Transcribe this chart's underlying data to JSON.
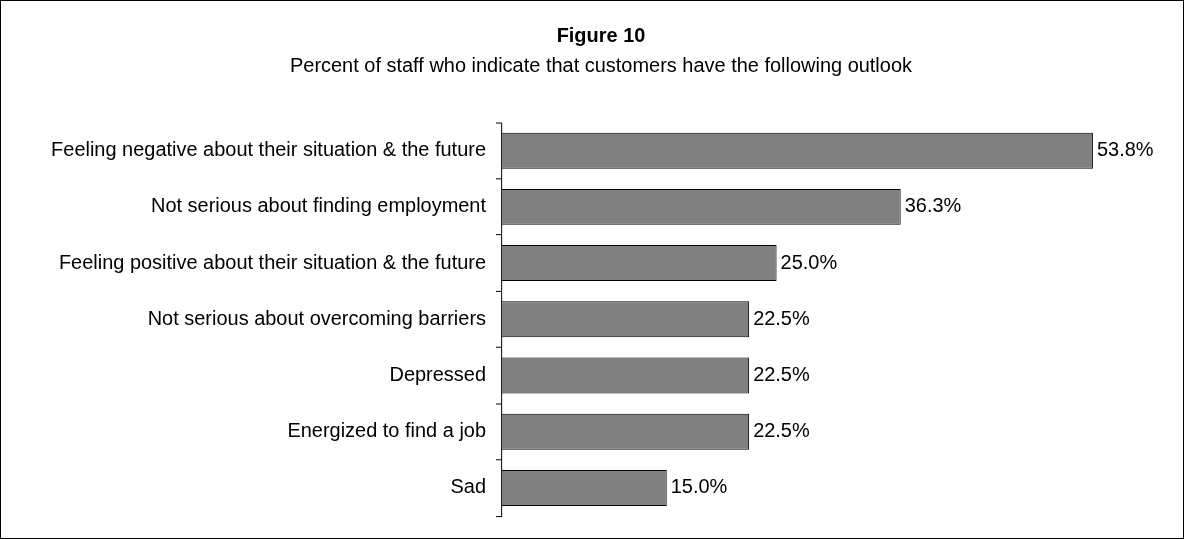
{
  "chart_data": {
    "type": "bar",
    "orientation": "horizontal",
    "title": "Figure 10",
    "subtitle": "Percent of staff who indicate that customers have the following outlook",
    "categories": [
      "Feeling negative about their situation & the future",
      "Not serious about finding employment",
      "Feeling positive about their situation & the future",
      "Not serious about overcoming barriers",
      "Depressed",
      "Energized to find a job",
      "Sad"
    ],
    "values": [
      53.8,
      36.3,
      25.0,
      22.5,
      22.5,
      22.5,
      15.0
    ],
    "value_labels": [
      "53.8%",
      "36.3%",
      "25.0%",
      "22.5%",
      "22.5%",
      "22.5%",
      "15.0%"
    ],
    "color": "#808080",
    "legend": false
  }
}
